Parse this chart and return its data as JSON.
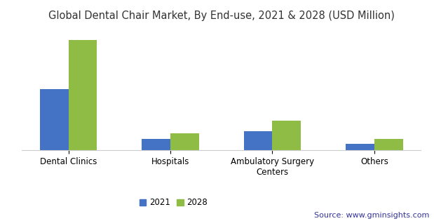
{
  "title": "Global Dental Chair Market, By End-use, 2021 & 2028 (USD Million)",
  "categories": [
    "Dental Clinics",
    "Hospitals",
    "Ambulatory Surgery\nCenters",
    "Others"
  ],
  "values_2021": [
    3.2,
    0.6,
    1.0,
    0.35
  ],
  "values_2028": [
    5.8,
    0.9,
    1.55,
    0.58
  ],
  "color_2021": "#4472C4",
  "color_2028": "#8FBC45",
  "legend_labels": [
    "2021",
    "2028"
  ],
  "source_text": "Source: www.gminsights.com",
  "background_color": "#ffffff",
  "ylim": [
    0,
    6.5
  ],
  "bar_width": 0.28,
  "title_fontsize": 10.5,
  "label_fontsize": 8.5,
  "legend_fontsize": 8.5,
  "source_fontsize": 8
}
